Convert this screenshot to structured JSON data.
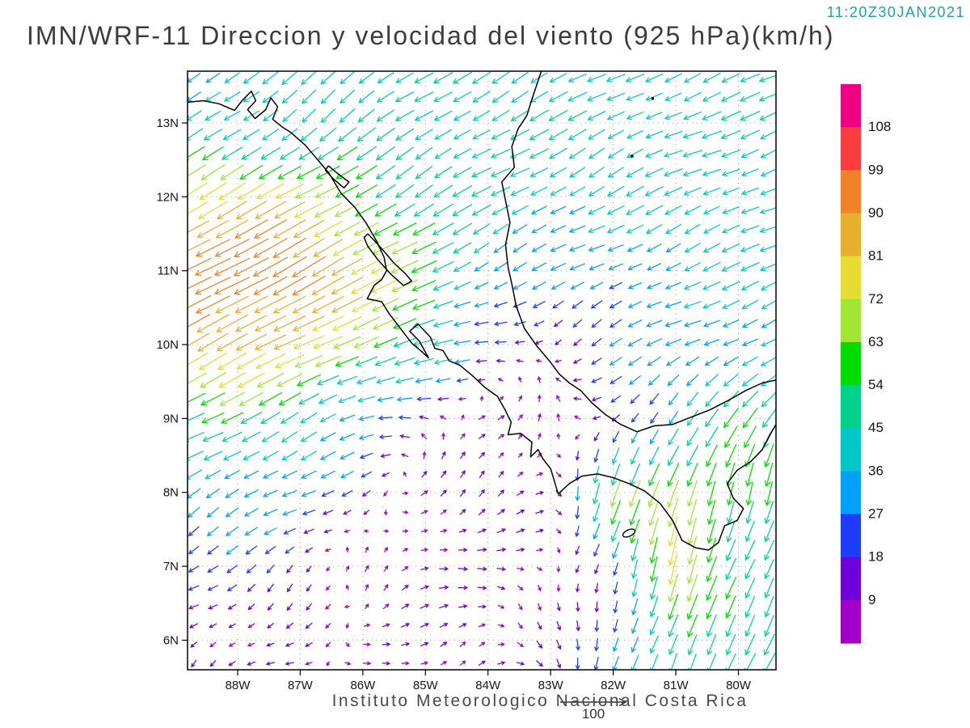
{
  "header": {
    "timestamp": "11:20Z30JAN2021",
    "title": "IMN/WRF-11 Direccion y velocidad del viento (925 hPa)(km/h)"
  },
  "footer": {
    "attribution": "Instituto Meteorologico Nacional Costa Rica",
    "reference_vector": {
      "label": "100"
    }
  },
  "colors": {
    "timestamp_text": "#1fa3a3",
    "title_text": "#3c3c3c",
    "attribution_text": "#4a4a4a",
    "coastline": "#000000",
    "background": "#ffffff"
  },
  "chart_data": {
    "type": "vector_field_map",
    "title": "IMN/WRF-11 Direccion y velocidad del viento (925 hPa)(km/h)",
    "time_label": "11:20Z30JAN2021",
    "units": "km/h",
    "level": "925 hPa",
    "reference_speed": 100,
    "map_extent": {
      "lon_west": 88.8,
      "lon_east": 79.4,
      "lat_south": 5.6,
      "lat_north": 13.7
    },
    "x_tick_labels": [
      "88W",
      "87W",
      "86W",
      "85W",
      "84W",
      "83W",
      "82W",
      "81W",
      "80W"
    ],
    "x_tick_lons_w": [
      88,
      87,
      86,
      85,
      84,
      83,
      82,
      81,
      80
    ],
    "y_tick_labels": [
      "13N",
      "12N",
      "11N",
      "10N",
      "9N",
      "8N",
      "7N",
      "6N"
    ],
    "y_tick_lats_n": [
      13,
      12,
      11,
      10,
      9,
      8,
      7,
      6
    ],
    "colorbar": {
      "levels": [
        9,
        18,
        27,
        36,
        45,
        54,
        63,
        72,
        81,
        90,
        99,
        108
      ],
      "colors": [
        "#a000c8",
        "#6e00dc",
        "#1e3cff",
        "#00a0ff",
        "#00c8c8",
        "#00d28c",
        "#00dc00",
        "#a0e632",
        "#e6dc32",
        "#e6af2d",
        "#f08228",
        "#fa3c3c",
        "#f00082"
      ]
    },
    "wind_grid": {
      "lons_w": [
        88,
        87,
        86,
        85,
        84,
        83,
        82,
        81,
        80
      ],
      "lats_n": [
        6,
        7,
        8,
        9,
        10,
        11,
        12,
        13
      ],
      "uv_rows_south_to_north": [
        [
          [
            -10,
            -7
          ],
          [
            -7,
            -5
          ],
          [
            5,
            3
          ],
          [
            9,
            2
          ],
          [
            10,
            2
          ],
          [
            4,
            -9
          ],
          [
            -7,
            -26
          ],
          [
            -16,
            -48
          ],
          [
            -24,
            -44
          ]
        ],
        [
          [
            -16,
            -12
          ],
          [
            -12,
            -9
          ],
          [
            6,
            4
          ],
          [
            11,
            3
          ],
          [
            11,
            2
          ],
          [
            5,
            -5
          ],
          [
            -8,
            -22
          ],
          [
            -20,
            -72
          ],
          [
            -18,
            -46
          ]
        ],
        [
          [
            -30,
            -18
          ],
          [
            -26,
            -14
          ],
          [
            -16,
            -6
          ],
          [
            8,
            7
          ],
          [
            11,
            6
          ],
          [
            7,
            3
          ],
          [
            -20,
            -60
          ],
          [
            -22,
            -68
          ],
          [
            -14,
            -52
          ]
        ],
        [
          [
            -46,
            -24
          ],
          [
            -40,
            -20
          ],
          [
            -28,
            -10
          ],
          [
            -12,
            2
          ],
          [
            6,
            8
          ],
          [
            4,
            10
          ],
          [
            -12,
            -12
          ],
          [
            -20,
            -24
          ],
          [
            -30,
            -45
          ]
        ],
        [
          [
            -76,
            -40
          ],
          [
            -70,
            -35
          ],
          [
            -60,
            -24
          ],
          [
            -50,
            -10
          ],
          [
            -18,
            -4
          ],
          [
            -10,
            -6
          ],
          [
            -22,
            -12
          ],
          [
            -30,
            -14
          ],
          [
            -34,
            -15
          ]
        ],
        [
          [
            -85,
            -45
          ],
          [
            -88,
            -48
          ],
          [
            -72,
            -38
          ],
          [
            -56,
            -30
          ],
          [
            -28,
            -14
          ],
          [
            -26,
            -12
          ],
          [
            -28,
            -14
          ],
          [
            -32,
            -15
          ],
          [
            -36,
            -15
          ]
        ],
        [
          [
            -70,
            -38
          ],
          [
            -64,
            -36
          ],
          [
            -52,
            -30
          ],
          [
            -40,
            -24
          ],
          [
            -40,
            -22
          ],
          [
            -36,
            -20
          ],
          [
            -34,
            -18
          ],
          [
            -36,
            -16
          ],
          [
            -38,
            -16
          ]
        ],
        [
          [
            -30,
            -22
          ],
          [
            -32,
            -26
          ],
          [
            -34,
            -26
          ],
          [
            -38,
            -24
          ],
          [
            -40,
            -22
          ],
          [
            -38,
            -20
          ],
          [
            -36,
            -18
          ],
          [
            -38,
            -16
          ],
          [
            -40,
            -16
          ]
        ]
      ]
    },
    "coastlines": [
      [
        [
          88.8,
          13.28
        ],
        [
          88.55,
          13.3
        ],
        [
          88.3,
          13.26
        ],
        [
          88.05,
          13.17
        ],
        [
          87.93,
          13.3
        ],
        [
          87.78,
          13.43
        ],
        [
          87.71,
          13.3
        ],
        [
          87.84,
          13.18
        ],
        [
          87.72,
          13.06
        ],
        [
          87.55,
          13.18
        ],
        [
          87.47,
          13.34
        ],
        [
          87.36,
          13.22
        ],
        [
          87.44,
          13.05
        ],
        [
          87.28,
          12.94
        ],
        [
          87.15,
          12.87
        ],
        [
          86.92,
          12.7
        ],
        [
          86.72,
          12.5
        ],
        [
          86.54,
          12.32
        ],
        [
          86.35,
          12.05
        ],
        [
          86.13,
          11.86
        ],
        [
          85.95,
          11.65
        ],
        [
          85.78,
          11.4
        ],
        [
          85.66,
          11.18
        ],
        [
          85.62,
          11.0
        ],
        [
          85.7,
          10.88
        ],
        [
          85.82,
          10.8
        ],
        [
          85.93,
          10.62
        ],
        [
          85.7,
          10.58
        ],
        [
          85.58,
          10.42
        ],
        [
          85.4,
          10.22
        ],
        [
          85.22,
          10.02
        ],
        [
          85.05,
          9.9
        ],
        [
          84.95,
          9.82
        ],
        [
          85.1,
          10.05
        ],
        [
          85.25,
          10.18
        ],
        [
          85.12,
          10.28
        ],
        [
          84.92,
          10.1
        ],
        [
          84.85,
          9.95
        ],
        [
          84.72,
          9.92
        ],
        [
          84.62,
          9.78
        ],
        [
          84.45,
          9.72
        ],
        [
          84.25,
          9.58
        ],
        [
          84.05,
          9.42
        ],
        [
          83.85,
          9.3
        ],
        [
          83.73,
          9.12
        ],
        [
          83.63,
          8.95
        ],
        [
          83.68,
          8.78
        ],
        [
          83.48,
          8.8
        ],
        [
          83.3,
          8.68
        ],
        [
          83.32,
          8.48
        ],
        [
          83.2,
          8.58
        ],
        [
          83.12,
          8.45
        ],
        [
          83.0,
          8.32
        ],
        [
          82.95,
          8.18
        ],
        [
          82.88,
          7.98
        ],
        [
          82.7,
          8.12
        ],
        [
          82.5,
          8.22
        ],
        [
          82.25,
          8.25
        ],
        [
          82.0,
          8.2
        ],
        [
          81.75,
          8.12
        ],
        [
          81.5,
          8.02
        ],
        [
          81.25,
          7.85
        ],
        [
          81.05,
          7.62
        ],
        [
          80.9,
          7.35
        ],
        [
          80.68,
          7.25
        ],
        [
          80.48,
          7.22
        ],
        [
          80.32,
          7.32
        ],
        [
          80.22,
          7.55
        ],
        [
          80.02,
          7.62
        ],
        [
          79.92,
          7.78
        ],
        [
          80.08,
          7.92
        ],
        [
          80.18,
          8.12
        ],
        [
          80.02,
          8.3
        ],
        [
          79.8,
          8.42
        ],
        [
          79.62,
          8.58
        ],
        [
          79.5,
          8.78
        ],
        [
          79.4,
          8.92
        ]
      ],
      [
        [
          79.4,
          9.52
        ],
        [
          79.62,
          9.48
        ],
        [
          79.88,
          9.38
        ],
        [
          80.15,
          9.25
        ],
        [
          80.45,
          9.12
        ],
        [
          80.75,
          9.02
        ],
        [
          81.05,
          8.92
        ],
        [
          81.35,
          8.9
        ],
        [
          81.62,
          8.82
        ],
        [
          81.88,
          8.92
        ],
        [
          82.12,
          9.05
        ],
        [
          82.35,
          9.22
        ],
        [
          82.52,
          9.38
        ],
        [
          82.7,
          9.48
        ],
        [
          82.86,
          9.6
        ],
        [
          83.02,
          9.78
        ],
        [
          83.22,
          9.98
        ],
        [
          83.42,
          10.22
        ],
        [
          83.55,
          10.52
        ],
        [
          83.62,
          10.82
        ],
        [
          83.68,
          11.05
        ],
        [
          83.72,
          11.35
        ],
        [
          83.65,
          11.65
        ],
        [
          83.72,
          11.95
        ],
        [
          83.78,
          12.2
        ],
        [
          83.58,
          12.4
        ],
        [
          83.62,
          12.68
        ],
        [
          83.52,
          12.92
        ],
        [
          83.38,
          13.1
        ],
        [
          83.3,
          13.32
        ],
        [
          83.22,
          13.52
        ],
        [
          83.15,
          13.7
        ]
      ],
      [
        [
          85.92,
          11.5
        ],
        [
          85.72,
          11.32
        ],
        [
          85.5,
          11.1
        ],
        [
          85.32,
          10.96
        ],
        [
          85.22,
          10.86
        ],
        [
          85.35,
          10.8
        ],
        [
          85.55,
          10.95
        ],
        [
          85.76,
          11.15
        ],
        [
          85.92,
          11.33
        ],
        [
          85.98,
          11.45
        ],
        [
          85.92,
          11.5
        ]
      ],
      [
        [
          86.55,
          12.42
        ],
        [
          86.38,
          12.3
        ],
        [
          86.22,
          12.2
        ],
        [
          86.3,
          12.12
        ],
        [
          86.48,
          12.25
        ],
        [
          86.6,
          12.36
        ],
        [
          86.55,
          12.42
        ]
      ]
    ],
    "island_dots": [
      [
        81.7,
        12.55
      ],
      [
        81.37,
        13.33
      ]
    ],
    "island_ellipses": [
      {
        "lon": 81.75,
        "lat": 7.45,
        "rx": 8,
        "ry": 4,
        "rot": -25
      }
    ]
  }
}
